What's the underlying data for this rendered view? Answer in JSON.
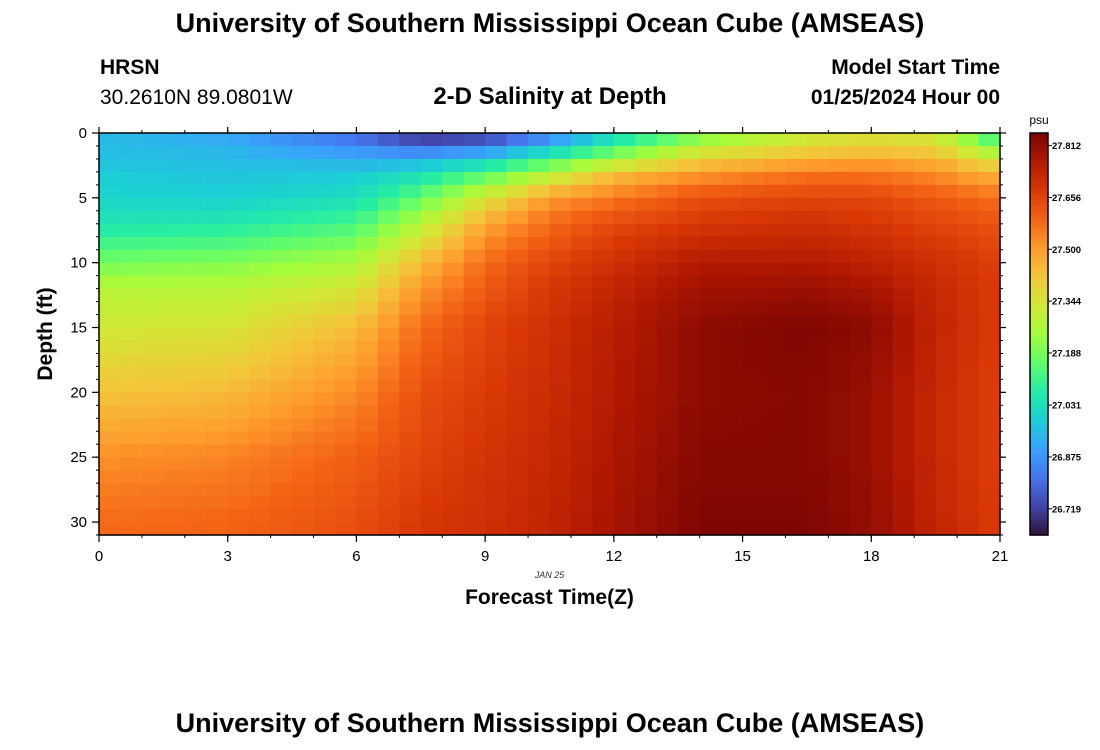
{
  "header": {
    "title": "University of Southern Mississippi Ocean Cube (AMSEAS)",
    "station_id": "HRSN",
    "station_coords": "30.2610N  89.0801W",
    "chart_title": "2-D Salinity at Depth",
    "model_start_label": "Model Start Time",
    "model_start_value": "01/25/2024 Hour 00"
  },
  "footer": {
    "title": "University of Southern Mississippi Ocean Cube (AMSEAS)"
  },
  "colors": {
    "colormap": [
      "#30123b",
      "#4145ab",
      "#4675ed",
      "#39a2fc",
      "#1bcfd4",
      "#24eca6",
      "#61fc6c",
      "#a4fc3b",
      "#d1e834",
      "#f3c63a",
      "#fe9b2d",
      "#f36315",
      "#d93806",
      "#b11901",
      "#7a0403"
    ]
  },
  "chart_data": {
    "type": "heatmap",
    "title": "2-D Salinity at Depth",
    "xlabel": "Forecast Time(Z)",
    "ylabel": "Depth (ft)",
    "date_label": "JAN 25",
    "xlim": [
      0,
      21
    ],
    "ylim": [
      0,
      31
    ],
    "y_inverted": true,
    "x_ticks": [
      0,
      3,
      6,
      9,
      12,
      15,
      18,
      21
    ],
    "y_ticks": [
      0,
      5,
      10,
      15,
      20,
      25,
      30
    ],
    "colorbar": {
      "unit": "psu",
      "range": [
        26.64,
        27.85
      ],
      "ticks": [
        "27.812",
        "27.656",
        "27.500",
        "27.344",
        "27.188",
        "27.031",
        "26.875",
        "26.719"
      ]
    },
    "grid_shape": {
      "time_steps": 42,
      "depth_levels": 31
    },
    "time_knots": [
      0,
      3,
      6,
      7.5,
      9,
      10.5,
      12,
      14,
      16.5,
      18,
      19.5,
      21
    ],
    "depth_knots": [
      0,
      1,
      2,
      3,
      5,
      7,
      10,
      12,
      15,
      20,
      25,
      30
    ],
    "salinity_psu": [
      [
        26.95,
        26.9,
        26.78,
        26.66,
        26.68,
        26.8,
        26.98,
        27.15,
        27.3,
        27.33,
        27.32,
        27.05
      ],
      [
        26.95,
        26.93,
        26.85,
        26.79,
        26.82,
        26.95,
        27.12,
        27.3,
        27.38,
        27.4,
        27.38,
        27.18
      ],
      [
        26.96,
        26.95,
        26.92,
        26.92,
        26.98,
        27.1,
        27.22,
        27.38,
        27.45,
        27.47,
        27.45,
        27.32
      ],
      [
        26.98,
        26.96,
        26.97,
        27.02,
        27.12,
        27.26,
        27.42,
        27.5,
        27.56,
        27.56,
        27.52,
        27.44
      ],
      [
        27.0,
        26.99,
        27.03,
        27.16,
        27.34,
        27.5,
        27.56,
        27.63,
        27.65,
        27.65,
        27.61,
        27.57
      ],
      [
        27.05,
        27.06,
        27.12,
        27.28,
        27.48,
        27.58,
        27.64,
        27.68,
        27.7,
        27.68,
        27.65,
        27.62
      ],
      [
        27.18,
        27.2,
        27.26,
        27.44,
        27.58,
        27.65,
        27.7,
        27.76,
        27.76,
        27.74,
        27.7,
        27.66
      ],
      [
        27.28,
        27.28,
        27.34,
        27.51,
        27.61,
        27.68,
        27.73,
        27.79,
        27.8,
        27.78,
        27.72,
        27.67
      ],
      [
        27.33,
        27.34,
        27.44,
        27.58,
        27.65,
        27.7,
        27.75,
        27.82,
        27.84,
        27.82,
        27.73,
        27.67
      ],
      [
        27.42,
        27.44,
        27.53,
        27.63,
        27.67,
        27.71,
        27.76,
        27.82,
        27.83,
        27.8,
        27.72,
        27.66
      ],
      [
        27.52,
        27.54,
        27.6,
        27.65,
        27.69,
        27.72,
        27.77,
        27.83,
        27.83,
        27.8,
        27.72,
        27.66
      ],
      [
        27.58,
        27.59,
        27.63,
        27.68,
        27.7,
        27.73,
        27.78,
        27.84,
        27.84,
        27.81,
        27.73,
        27.67
      ]
    ]
  }
}
